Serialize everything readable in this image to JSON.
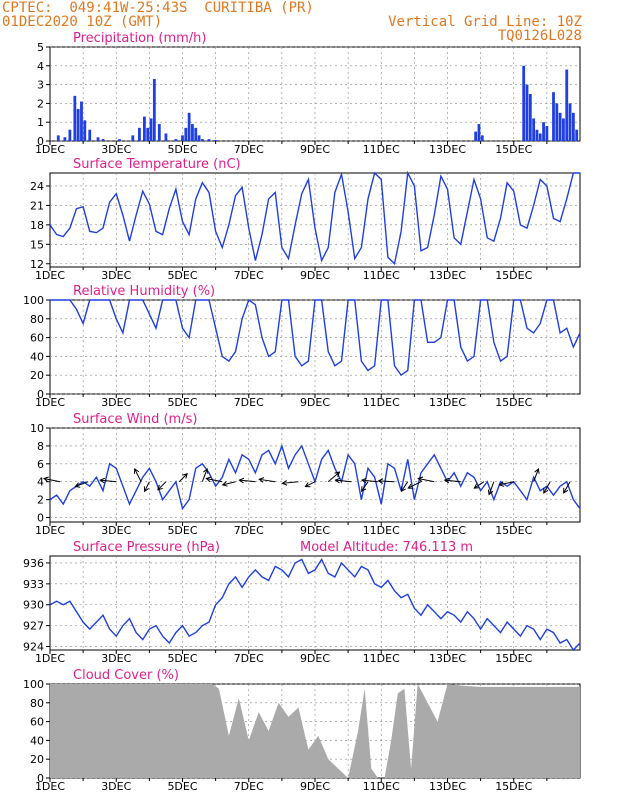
{
  "header": {
    "line1": "CPTEC:  049:41W-25:43S  CURITIBA (PR)",
    "line2": "01DEC2020 10Z (GMT)",
    "grid_note": "Vertical Grid Line: 10Z",
    "code": "TQ0126L028"
  },
  "colors": {
    "header": "#e07820",
    "title": "#e0208a",
    "line": "#1f3fe0",
    "cloud": "#aaaaaa",
    "grid": "#888888"
  },
  "x_ticks": [
    "1DEC",
    "3DEC",
    "5DEC",
    "7DEC",
    "9DEC",
    "11DEC",
    "13DEC",
    "15DEC"
  ],
  "chart_data": [
    {
      "type": "bar",
      "title": "Precipitation (mm/h)",
      "ylim": [
        0,
        5
      ],
      "yticks": [
        0,
        1,
        2,
        3,
        4,
        5
      ],
      "series": [
        {
          "x": [
            0.25,
            0.45,
            0.6,
            0.75,
            0.85,
            0.95,
            1.05,
            1.2,
            1.45,
            1.6,
            2.1,
            2.5,
            2.7,
            2.85,
            2.95,
            3.05,
            3.15,
            3.3,
            3.5,
            3.8,
            4.0,
            4.1,
            4.2,
            4.3,
            4.4,
            4.5,
            4.6,
            4.8,
            5.0,
            12.85,
            12.95,
            13.05,
            14.3,
            14.4,
            14.5,
            14.6,
            14.7,
            14.8,
            14.9,
            15.0,
            15.2,
            15.3,
            15.4,
            15.5,
            15.6,
            15.7,
            15.8,
            15.9
          ],
          "values": [
            0.3,
            0.2,
            0.6,
            2.4,
            1.7,
            2.1,
            1.1,
            0.6,
            0.2,
            0.1,
            0.1,
            0.3,
            0.7,
            1.3,
            0.7,
            1.2,
            3.3,
            0.9,
            0.4,
            0.1,
            0.3,
            0.7,
            1.5,
            0.9,
            0.7,
            0.3,
            0.1,
            0.1,
            0.05,
            0.5,
            0.9,
            0.3,
            4.0,
            3.0,
            2.5,
            1.2,
            0.6,
            0.4,
            1.0,
            0.8,
            2.6,
            2.0,
            1.5,
            1.2,
            3.8,
            2.0,
            1.5,
            0.6
          ]
        }
      ]
    },
    {
      "type": "line",
      "title": "Surface Temperature (nC)",
      "ylim": [
        11.5,
        26
      ],
      "yticks": [
        12,
        15,
        18,
        21,
        24
      ],
      "series": [
        {
          "x": [
            0,
            0.2,
            0.4,
            0.6,
            0.8,
            1.0,
            1.2,
            1.4,
            1.6,
            1.8,
            2.0,
            2.2,
            2.4,
            2.6,
            2.8,
            3.0,
            3.2,
            3.4,
            3.6,
            3.8,
            4.0,
            4.2,
            4.4,
            4.6,
            4.8,
            5.0,
            5.2,
            5.4,
            5.6,
            5.8,
            6.0,
            6.2,
            6.4,
            6.6,
            6.8,
            7.0,
            7.2,
            7.4,
            7.6,
            7.8,
            8.0,
            8.2,
            8.4,
            8.6,
            8.8,
            9.0,
            9.2,
            9.4,
            9.6,
            9.8,
            10.0,
            10.2,
            10.4,
            10.6,
            10.8,
            11.0,
            11.2,
            11.4,
            11.6,
            11.8,
            12.0,
            12.2,
            12.4,
            12.6,
            12.8,
            13.0,
            13.2,
            13.4,
            13.6,
            13.8,
            14.0,
            14.2,
            14.4,
            14.6,
            14.8,
            15.0,
            15.2,
            15.4,
            15.6,
            15.8,
            16.0
          ],
          "values": [
            18,
            16.5,
            16.2,
            17.5,
            20.5,
            20.8,
            17,
            16.8,
            17.5,
            21.5,
            22.8,
            19.5,
            15.5,
            19.5,
            23.2,
            21.2,
            17,
            16.5,
            20.5,
            23.5,
            18.5,
            16.5,
            22,
            24.5,
            23,
            17,
            14.5,
            18,
            22.5,
            23.8,
            17.5,
            12.5,
            16.5,
            22,
            23,
            14.5,
            12.8,
            18,
            22.8,
            25,
            17.5,
            12.5,
            14.5,
            23,
            25.8,
            20,
            12.8,
            14.5,
            22,
            26,
            25,
            13,
            12,
            17,
            26,
            24,
            14,
            14.5,
            19.5,
            25.5,
            23.5,
            16,
            15,
            20,
            25,
            22,
            16,
            15.5,
            19,
            24.5,
            23.2,
            18,
            17.5,
            21,
            25,
            24,
            19,
            18.5,
            22,
            26,
            26
          ]
        }
      ]
    },
    {
      "type": "line",
      "title": "Relative Humidity (%)",
      "ylim": [
        0,
        100
      ],
      "yticks": [
        0,
        20,
        40,
        60,
        80,
        100
      ],
      "series": [
        {
          "x": [
            0,
            0.2,
            0.4,
            0.6,
            0.8,
            1.0,
            1.2,
            1.4,
            1.6,
            1.8,
            2.0,
            2.2,
            2.4,
            2.6,
            2.8,
            3.0,
            3.2,
            3.4,
            3.6,
            3.8,
            4.0,
            4.2,
            4.4,
            4.6,
            4.8,
            5.0,
            5.2,
            5.4,
            5.6,
            5.8,
            6.0,
            6.2,
            6.4,
            6.6,
            6.8,
            7.0,
            7.2,
            7.4,
            7.6,
            7.8,
            8.0,
            8.2,
            8.4,
            8.6,
            8.8,
            9.0,
            9.2,
            9.4,
            9.6,
            9.8,
            10.0,
            10.2,
            10.4,
            10.6,
            10.8,
            11.0,
            11.2,
            11.4,
            11.6,
            11.8,
            12.0,
            12.2,
            12.4,
            12.6,
            12.8,
            13.0,
            13.2,
            13.4,
            13.6,
            13.8,
            14.0,
            14.2,
            14.4,
            14.6,
            14.8,
            15.0,
            15.2,
            15.4,
            15.6,
            15.8,
            16.0
          ],
          "values": [
            100,
            100,
            100,
            100,
            90,
            75,
            100,
            100,
            100,
            100,
            80,
            65,
            100,
            100,
            100,
            85,
            70,
            100,
            100,
            100,
            70,
            60,
            100,
            100,
            100,
            70,
            40,
            35,
            45,
            80,
            100,
            95,
            60,
            40,
            45,
            100,
            100,
            40,
            30,
            35,
            100,
            100,
            45,
            30,
            35,
            100,
            100,
            35,
            25,
            30,
            100,
            100,
            30,
            20,
            25,
            100,
            100,
            55,
            55,
            60,
            100,
            100,
            50,
            35,
            40,
            100,
            100,
            55,
            35,
            40,
            100,
            100,
            70,
            65,
            75,
            100,
            100,
            65,
            70,
            50,
            65
          ]
        }
      ]
    },
    {
      "type": "line",
      "title": "Surface Wind (m/s)",
      "ylim": [
        -0.5,
        10
      ],
      "yticks": [
        0,
        2,
        4,
        6,
        8,
        10
      ],
      "series": [
        {
          "x": [
            0,
            0.2,
            0.4,
            0.6,
            0.8,
            1.0,
            1.2,
            1.4,
            1.6,
            1.8,
            2.0,
            2.2,
            2.4,
            2.6,
            2.8,
            3.0,
            3.2,
            3.4,
            3.6,
            3.8,
            4.0,
            4.2,
            4.4,
            4.6,
            4.8,
            5.0,
            5.2,
            5.4,
            5.6,
            5.8,
            6.0,
            6.2,
            6.4,
            6.6,
            6.8,
            7.0,
            7.2,
            7.4,
            7.6,
            7.8,
            8.0,
            8.2,
            8.4,
            8.6,
            8.8,
            9.0,
            9.2,
            9.4,
            9.6,
            9.8,
            10.0,
            10.2,
            10.4,
            10.6,
            10.8,
            11.0,
            11.2,
            11.4,
            11.6,
            11.8,
            12.0,
            12.2,
            12.4,
            12.6,
            12.8,
            13.0,
            13.2,
            13.4,
            13.6,
            13.8,
            14.0,
            14.2,
            14.4,
            14.6,
            14.8,
            15.0,
            15.2,
            15.4,
            15.6,
            15.8,
            16.0
          ],
          "values": [
            2,
            2.5,
            1.5,
            3,
            3.5,
            4,
            3.5,
            4.5,
            3,
            6,
            5.5,
            3.5,
            1.5,
            3,
            4.5,
            5.5,
            4,
            2,
            3,
            4,
            1,
            2,
            5.5,
            6,
            5,
            3.5,
            4.5,
            6.5,
            5,
            7,
            6.5,
            5,
            7,
            7.5,
            6,
            8,
            5.5,
            7,
            8,
            6,
            4,
            6.5,
            7.5,
            5.5,
            4,
            7,
            6,
            2,
            5.5,
            4.5,
            1.5,
            6,
            5.5,
            3,
            6.5,
            2,
            5,
            6,
            7,
            5.5,
            4,
            5,
            3.5,
            5,
            4.5,
            3,
            4,
            2,
            4,
            3.5,
            4,
            3,
            2,
            4.5,
            3,
            3.5,
            2.5,
            3.5,
            4,
            2,
            1
          ]
        }
      ],
      "vectors": [
        {
          "x": 0.3,
          "u": -1,
          "v": 0.2
        },
        {
          "x": 1.15,
          "u": -0.8,
          "v": -0.3
        },
        {
          "x": 2.0,
          "u": -1,
          "v": 0.1
        },
        {
          "x": 2.75,
          "u": -0.4,
          "v": 0.8
        },
        {
          "x": 3.0,
          "u": -0.3,
          "v": -0.6
        },
        {
          "x": 3.5,
          "u": -0.5,
          "v": -0.5
        },
        {
          "x": 3.9,
          "u": 0.5,
          "v": 0.5
        },
        {
          "x": 4.6,
          "u": 0.3,
          "v": 0.8
        },
        {
          "x": 5.2,
          "u": -1,
          "v": 0.2
        },
        {
          "x": 5.6,
          "u": -0.8,
          "v": -0.2
        },
        {
          "x": 6.2,
          "u": -1,
          "v": 0.1
        },
        {
          "x": 6.8,
          "u": -1,
          "v": 0.15
        },
        {
          "x": 7.5,
          "u": -1,
          "v": -0.1
        },
        {
          "x": 8.0,
          "u": -0.6,
          "v": -0.3
        },
        {
          "x": 8.4,
          "u": 0.7,
          "v": 0.6
        },
        {
          "x": 9.1,
          "u": -1,
          "v": 0.1
        },
        {
          "x": 9.6,
          "u": -0.4,
          "v": -0.6
        },
        {
          "x": 9.9,
          "u": -1,
          "v": 0.1
        },
        {
          "x": 10.4,
          "u": -1,
          "v": 0.05
        },
        {
          "x": 10.8,
          "u": -0.4,
          "v": -0.6
        },
        {
          "x": 11.2,
          "u": -0.8,
          "v": -0.4
        },
        {
          "x": 11.6,
          "u": -1,
          "v": 0.2
        },
        {
          "x": 12.4,
          "u": -1,
          "v": 0.1
        },
        {
          "x": 13.1,
          "u": -0.6,
          "v": -0.4
        },
        {
          "x": 13.4,
          "u": -0.3,
          "v": -0.8
        },
        {
          "x": 14.0,
          "u": -0.9,
          "v": -0.2
        },
        {
          "x": 14.6,
          "u": 0.3,
          "v": 0.8
        },
        {
          "x": 15.1,
          "u": -0.4,
          "v": -0.7
        },
        {
          "x": 15.7,
          "u": -0.4,
          "v": -0.7
        }
      ]
    },
    {
      "type": "line",
      "title": "Surface Pressure (hPa)",
      "note": "Model Altitude: 746.113 m",
      "ylim": [
        923.5,
        937
      ],
      "yticks": [
        924,
        927,
        930,
        933,
        936
      ],
      "series": [
        {
          "x": [
            0,
            0.2,
            0.4,
            0.6,
            0.8,
            1.0,
            1.2,
            1.4,
            1.6,
            1.8,
            2.0,
            2.2,
            2.4,
            2.6,
            2.8,
            3.0,
            3.2,
            3.4,
            3.6,
            3.8,
            4.0,
            4.2,
            4.4,
            4.6,
            4.8,
            5.0,
            5.2,
            5.4,
            5.6,
            5.8,
            6.0,
            6.2,
            6.4,
            6.6,
            6.8,
            7.0,
            7.2,
            7.4,
            7.6,
            7.8,
            8.0,
            8.2,
            8.4,
            8.6,
            8.8,
            9.0,
            9.2,
            9.4,
            9.6,
            9.8,
            10.0,
            10.2,
            10.4,
            10.6,
            10.8,
            11.0,
            11.2,
            11.4,
            11.6,
            11.8,
            12.0,
            12.2,
            12.4,
            12.6,
            12.8,
            13.0,
            13.2,
            13.4,
            13.6,
            13.8,
            14.0,
            14.2,
            14.4,
            14.6,
            14.8,
            15.0,
            15.2,
            15.4,
            15.6,
            15.8,
            16.0
          ],
          "values": [
            930,
            930.5,
            930,
            930.5,
            929,
            927.5,
            926.5,
            927.5,
            928.5,
            926.5,
            925.5,
            927,
            928,
            926,
            925,
            926.5,
            927,
            925.5,
            924.5,
            926,
            927,
            925.5,
            926,
            927,
            927.5,
            930,
            931,
            933,
            934,
            932.5,
            934,
            935,
            934,
            933.5,
            935.5,
            935,
            934,
            936,
            936.5,
            934.5,
            935,
            936.5,
            934.5,
            934,
            936,
            935,
            934,
            935.5,
            935,
            933,
            932.5,
            933.5,
            932,
            931,
            931.5,
            929.5,
            928.5,
            930,
            929,
            928,
            929,
            928.5,
            927.5,
            929,
            928,
            926.5,
            928,
            927,
            926,
            927.5,
            926.5,
            925.5,
            927,
            926.5,
            925,
            926.5,
            926,
            924.5,
            925,
            923.5,
            924.5
          ]
        }
      ]
    },
    {
      "type": "area",
      "title": "Cloud Cover (%)",
      "ylim": [
        0,
        100
      ],
      "yticks": [
        0,
        20,
        40,
        60,
        80,
        100
      ],
      "series": [
        {
          "x": [
            0,
            0.5,
            1.0,
            1.5,
            2.0,
            2.5,
            3.0,
            3.5,
            4.0,
            4.5,
            4.9,
            5.1,
            5.4,
            5.7,
            6.0,
            6.3,
            6.6,
            6.9,
            7.2,
            7.5,
            7.8,
            8.1,
            8.4,
            8.7,
            9.0,
            9.3,
            9.5,
            9.7,
            9.9,
            10.1,
            10.3,
            10.5,
            10.7,
            10.9,
            11.1,
            11.4,
            11.7,
            12.0,
            12.5,
            13.0,
            13.5,
            14.0,
            14.5,
            15.0,
            15.5,
            16.0
          ],
          "values": [
            100,
            100,
            100,
            100,
            100,
            100,
            100,
            100,
            100,
            100,
            100,
            95,
            45,
            85,
            40,
            70,
            50,
            80,
            65,
            75,
            30,
            45,
            20,
            10,
            0,
            50,
            95,
            10,
            0,
            0,
            40,
            90,
            95,
            10,
            100,
            80,
            60,
            100,
            98,
            97,
            97,
            97,
            97,
            97,
            97,
            97
          ]
        }
      ]
    }
  ]
}
